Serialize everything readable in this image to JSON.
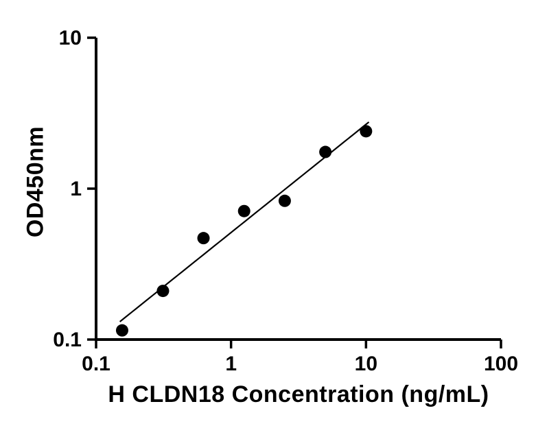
{
  "figure": {
    "background": "#ffffff",
    "foreground": "#000000"
  },
  "chart_data": {
    "type": "scatter",
    "title": "",
    "xlabel": "H CLDN18 Concentration (ng/mL)",
    "ylabel": "OD450nm",
    "x_scale": "log",
    "y_scale": "log",
    "xlim": [
      0.1,
      100
    ],
    "ylim": [
      0.1,
      10
    ],
    "x_ticks": [
      0.1,
      1,
      10,
      100
    ],
    "y_ticks": [
      0.1,
      1,
      10
    ],
    "grid": false,
    "legend": "none",
    "marker_color": "#000000",
    "line_color": "#000000",
    "points": [
      {
        "x": 0.156,
        "y": 0.115
      },
      {
        "x": 0.313,
        "y": 0.21
      },
      {
        "x": 0.625,
        "y": 0.47
      },
      {
        "x": 1.25,
        "y": 0.71
      },
      {
        "x": 2.5,
        "y": 0.83
      },
      {
        "x": 5,
        "y": 1.75
      },
      {
        "x": 10,
        "y": 2.4
      }
    ],
    "trend": {
      "kind": "power_fit_log_log",
      "log10_intercept": -0.291,
      "log10_slope": 0.717,
      "x_start": 0.15,
      "x_end": 10.5
    }
  }
}
